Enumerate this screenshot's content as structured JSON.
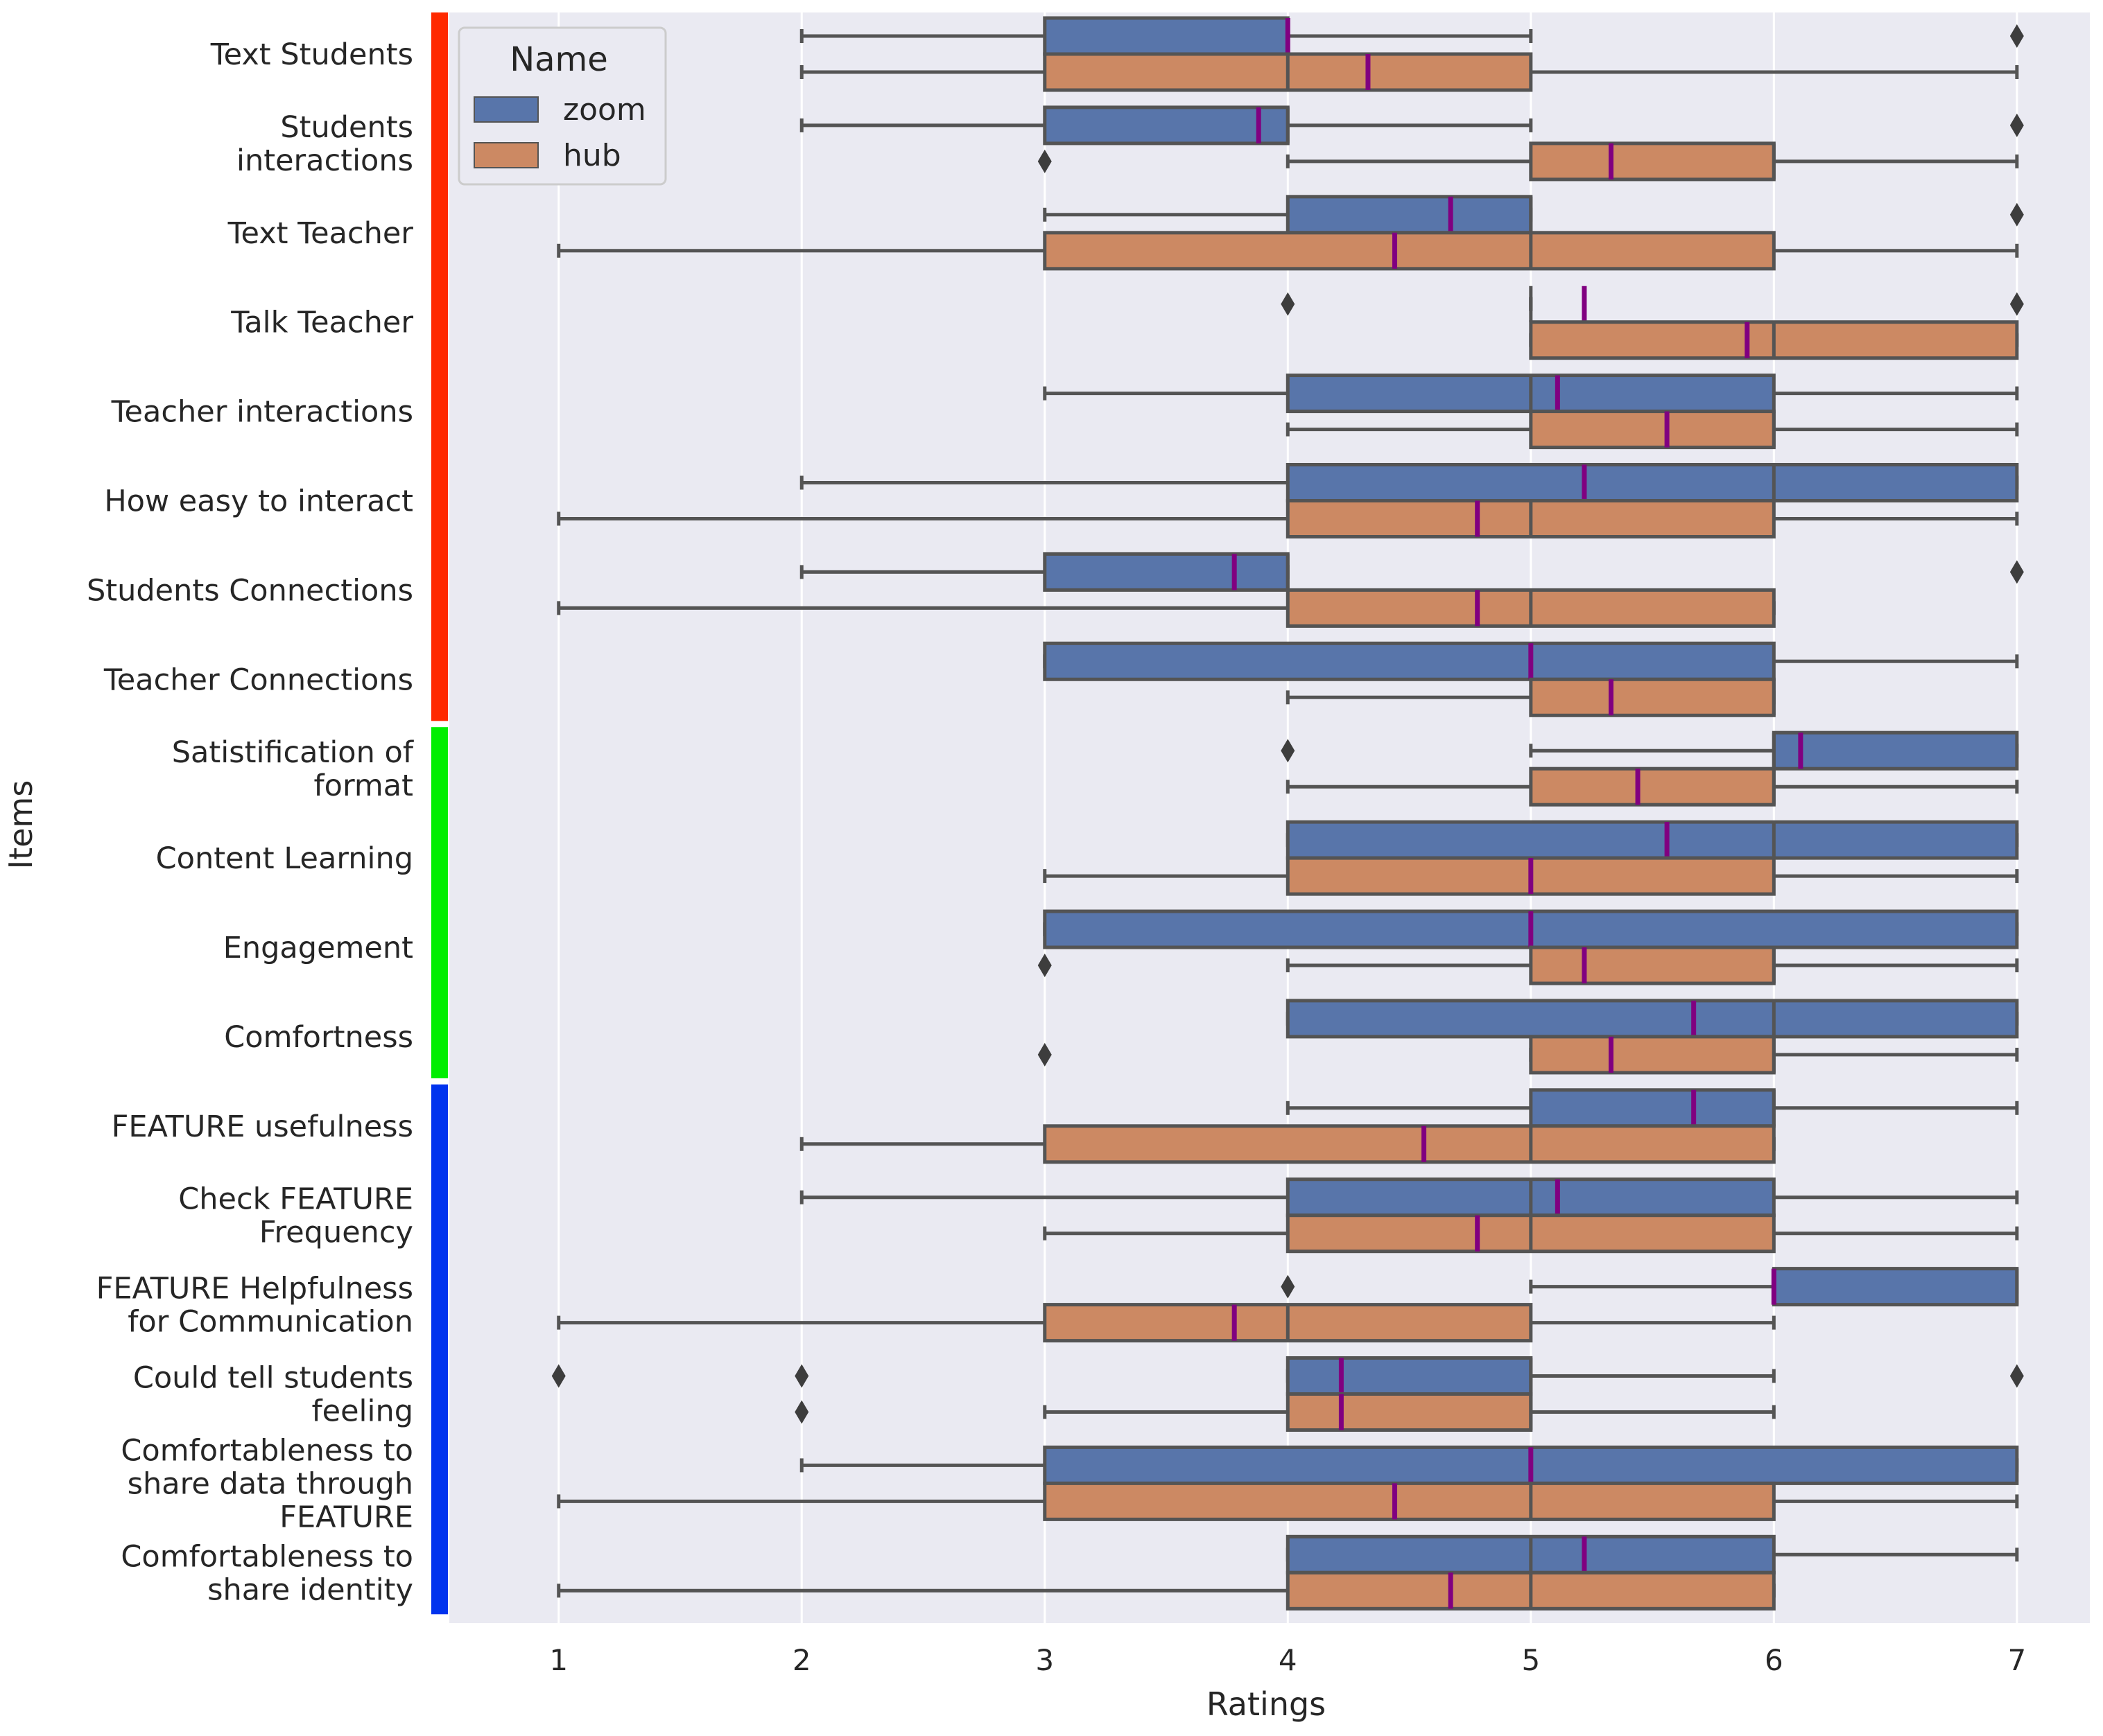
{
  "chart_data": {
    "type": "boxplot",
    "orientation": "horizontal",
    "title": "",
    "xlabel": "Ratings",
    "ylabel": "Items",
    "xlim": [
      0.55,
      7.3
    ],
    "xticks": [
      1,
      2,
      3,
      4,
      5,
      6,
      7
    ],
    "grid": true,
    "legend": {
      "title": "Name",
      "placement": "top-left"
    },
    "colors": {
      "zoom": "#5875aa",
      "hub": "#cc8963",
      "mean_marker": "#800080",
      "edge": "#545454",
      "plot_bg": "#eaeaf2"
    },
    "groups": [
      {
        "name": "group-1",
        "color": "#ff2a00",
        "from": 0,
        "to": 7
      },
      {
        "name": "group-2",
        "color": "#00ee00",
        "from": 8,
        "to": 11
      },
      {
        "name": "group-3",
        "color": "#0033ee",
        "from": 12,
        "to": 17
      }
    ],
    "series": [
      {
        "name": "zoom",
        "label": "zoom",
        "color": "#5875aa"
      },
      {
        "name": "hub",
        "label": "hub",
        "color": "#cc8963"
      }
    ],
    "items": [
      {
        "label": [
          "Text Students"
        ],
        "zoom": {
          "whislo": 2,
          "q1": 3,
          "med": 4,
          "q3": 4,
          "whishi": 5,
          "mean": 4.0,
          "fliers": [
            7
          ]
        },
        "hub": {
          "whislo": 2,
          "q1": 3,
          "med": 4,
          "q3": 5,
          "whishi": 7,
          "mean": 4.33,
          "fliers": []
        }
      },
      {
        "label": [
          "Students",
          "interactions"
        ],
        "zoom": {
          "whislo": 2,
          "q1": 3,
          "med": 4,
          "q3": 4,
          "whishi": 5,
          "mean": 3.88,
          "fliers": [
            7
          ]
        },
        "hub": {
          "whislo": 4,
          "q1": 5,
          "med": 6,
          "q3": 6,
          "whishi": 7,
          "mean": 5.33,
          "fliers": [
            3
          ]
        }
      },
      {
        "label": [
          "Text Teacher"
        ],
        "zoom": {
          "whislo": 3,
          "q1": 4,
          "med": 5,
          "q3": 5,
          "whishi": 5,
          "mean": 4.67,
          "fliers": [
            7
          ]
        },
        "hub": {
          "whislo": 1,
          "q1": 3,
          "med": 5,
          "q3": 6,
          "whishi": 7,
          "mean": 4.44,
          "fliers": []
        }
      },
      {
        "label": [
          "Talk Teacher"
        ],
        "zoom": {
          "whislo": 5,
          "q1": 5,
          "med": 5,
          "q3": 5,
          "whishi": 5,
          "mean": 5.22,
          "fliers": [
            4,
            7
          ]
        },
        "hub": {
          "whislo": 5,
          "q1": 5,
          "med": 6,
          "q3": 7,
          "whishi": 7,
          "mean": 5.89,
          "fliers": []
        }
      },
      {
        "label": [
          "Teacher interactions"
        ],
        "zoom": {
          "whislo": 3,
          "q1": 4,
          "med": 5,
          "q3": 6,
          "whishi": 7,
          "mean": 5.11,
          "fliers": []
        },
        "hub": {
          "whislo": 4,
          "q1": 5,
          "med": 6,
          "q3": 6,
          "whishi": 7,
          "mean": 5.56,
          "fliers": []
        }
      },
      {
        "label": [
          "How easy to interact"
        ],
        "zoom": {
          "whislo": 2,
          "q1": 4,
          "med": 6,
          "q3": 7,
          "whishi": 7,
          "mean": 5.22,
          "fliers": []
        },
        "hub": {
          "whislo": 1,
          "q1": 4,
          "med": 5,
          "q3": 6,
          "whishi": 7,
          "mean": 4.78,
          "fliers": []
        }
      },
      {
        "label": [
          "Students Connections"
        ],
        "zoom": {
          "whislo": 2,
          "q1": 3,
          "med": 4,
          "q3": 4,
          "whishi": 4,
          "mean": 3.78,
          "fliers": [
            7
          ]
        },
        "hub": {
          "whislo": 1,
          "q1": 4,
          "med": 5,
          "q3": 6,
          "whishi": 6,
          "mean": 4.78,
          "fliers": []
        }
      },
      {
        "label": [
          "Teacher Connections"
        ],
        "zoom": {
          "whislo": 3,
          "q1": 3,
          "med": 5,
          "q3": 6,
          "whishi": 7,
          "mean": 5.0,
          "fliers": []
        },
        "hub": {
          "whislo": 4,
          "q1": 5,
          "med": 6,
          "q3": 6,
          "whishi": 6,
          "mean": 5.33,
          "fliers": []
        }
      },
      {
        "label": [
          "Satistification of",
          "format"
        ],
        "zoom": {
          "whislo": 5,
          "q1": 6,
          "med": 6,
          "q3": 7,
          "whishi": 7,
          "mean": 6.11,
          "fliers": [
            4
          ]
        },
        "hub": {
          "whislo": 4,
          "q1": 5,
          "med": 6,
          "q3": 6,
          "whishi": 7,
          "mean": 5.44,
          "fliers": []
        }
      },
      {
        "label": [
          "Content Learning"
        ],
        "zoom": {
          "whislo": 4,
          "q1": 4,
          "med": 6,
          "q3": 7,
          "whishi": 7,
          "mean": 5.56,
          "fliers": []
        },
        "hub": {
          "whislo": 3,
          "q1": 4,
          "med": 5,
          "q3": 6,
          "whishi": 7,
          "mean": 5.0,
          "fliers": []
        }
      },
      {
        "label": [
          "Engagement"
        ],
        "zoom": {
          "whislo": 3,
          "q1": 3,
          "med": 5,
          "q3": 7,
          "whishi": 7,
          "mean": 5.0,
          "fliers": []
        },
        "hub": {
          "whislo": 4,
          "q1": 5,
          "med": 6,
          "q3": 6,
          "whishi": 7,
          "mean": 5.22,
          "fliers": [
            3
          ]
        }
      },
      {
        "label": [
          "Comfortness"
        ],
        "zoom": {
          "whislo": 4,
          "q1": 4,
          "med": 6,
          "q3": 7,
          "whishi": 7,
          "mean": 5.67,
          "fliers": []
        },
        "hub": {
          "whislo": 5,
          "q1": 5,
          "med": 6,
          "q3": 6,
          "whishi": 7,
          "mean": 5.33,
          "fliers": [
            3
          ]
        }
      },
      {
        "label": [
          "FEATURE usefulness"
        ],
        "zoom": {
          "whislo": 4,
          "q1": 5,
          "med": 6,
          "q3": 6,
          "whishi": 7,
          "mean": 5.67,
          "fliers": []
        },
        "hub": {
          "whislo": 2,
          "q1": 3,
          "med": 5,
          "q3": 6,
          "whishi": 6,
          "mean": 4.56,
          "fliers": []
        }
      },
      {
        "label": [
          "Check FEATURE",
          "Frequency"
        ],
        "zoom": {
          "whislo": 2,
          "q1": 4,
          "med": 5,
          "q3": 6,
          "whishi": 7,
          "mean": 5.11,
          "fliers": []
        },
        "hub": {
          "whislo": 3,
          "q1": 4,
          "med": 5,
          "q3": 6,
          "whishi": 7,
          "mean": 4.78,
          "fliers": []
        }
      },
      {
        "label": [
          "FEATURE Helpfulness",
          "for Communication"
        ],
        "zoom": {
          "whislo": 5,
          "q1": 6,
          "med": 7,
          "q3": 7,
          "whishi": 7,
          "mean": 6.0,
          "fliers": [
            4
          ]
        },
        "hub": {
          "whislo": 1,
          "q1": 3,
          "med": 4,
          "q3": 5,
          "whishi": 6,
          "mean": 3.78,
          "fliers": []
        }
      },
      {
        "label": [
          "Could tell students",
          "feeling"
        ],
        "zoom": {
          "whislo": 4,
          "q1": 4,
          "med": 5,
          "q3": 5,
          "whishi": 6,
          "mean": 4.22,
          "fliers": [
            1,
            2,
            7
          ]
        },
        "hub": {
          "whislo": 3,
          "q1": 4,
          "med": 5,
          "q3": 5,
          "whishi": 6,
          "mean": 4.22,
          "fliers": [
            2
          ]
        }
      },
      {
        "label": [
          "Comfortableness to",
          "share data through",
          "FEATURE"
        ],
        "zoom": {
          "whislo": 2,
          "q1": 3,
          "med": 5,
          "q3": 7,
          "whishi": 7,
          "mean": 5.0,
          "fliers": []
        },
        "hub": {
          "whislo": 1,
          "q1": 3,
          "med": 5,
          "q3": 6,
          "whishi": 7,
          "mean": 4.44,
          "fliers": []
        }
      },
      {
        "label": [
          "Comfortableness to",
          "share identity"
        ],
        "zoom": {
          "whislo": 4,
          "q1": 4,
          "med": 5,
          "q3": 6,
          "whishi": 7,
          "mean": 5.22,
          "fliers": []
        },
        "hub": {
          "whislo": 1,
          "q1": 4,
          "med": 5,
          "q3": 6,
          "whishi": 6,
          "mean": 4.67,
          "fliers": []
        }
      }
    ]
  }
}
